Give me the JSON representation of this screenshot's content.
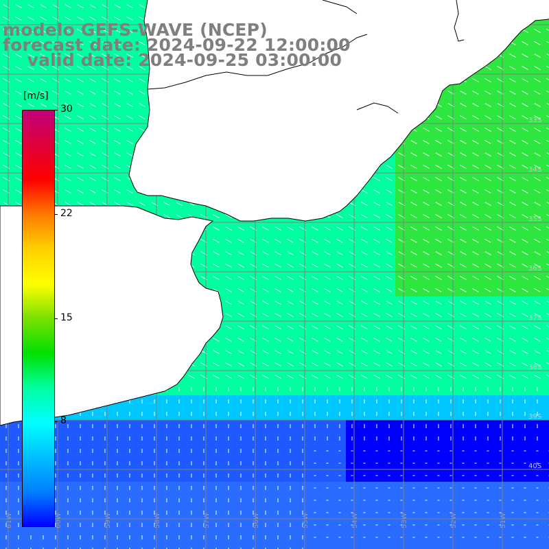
{
  "title": {
    "line1": "modelo GEFS-WAVE (NCEP)",
    "line2": "forecast date: 2024-09-22 12:00:00",
    "line3": "    valid date: 2024-09-25 03:00:00"
  },
  "colorbar": {
    "unit": "[m/s]",
    "min": 0,
    "max": 30,
    "ticks": [
      "30",
      "22",
      "15",
      "8"
    ],
    "colors": [
      "#c2007a",
      "#e0003a",
      "#ff0000",
      "#ff7a00",
      "#ffd000",
      "#ffff00",
      "#7ae000",
      "#00e000",
      "#00ffa0",
      "#00ffff",
      "#00c0ff",
      "#0080ff",
      "#0000ff"
    ]
  },
  "map": {
    "longitude_labels": [
      "61W",
      "60W",
      "59W",
      "58W",
      "57W",
      "56W",
      "55W",
      "54W",
      "53W",
      "52W",
      "51W"
    ],
    "latitude_labels": [
      "33S",
      "34S",
      "35S",
      "36S",
      "37S",
      "38S",
      "39S",
      "40S"
    ],
    "wind_field_colors": {
      "strong": "#2ee640",
      "moderate": "#00ffa0",
      "light": "#00c8ff",
      "weak": "#0000ff"
    }
  }
}
